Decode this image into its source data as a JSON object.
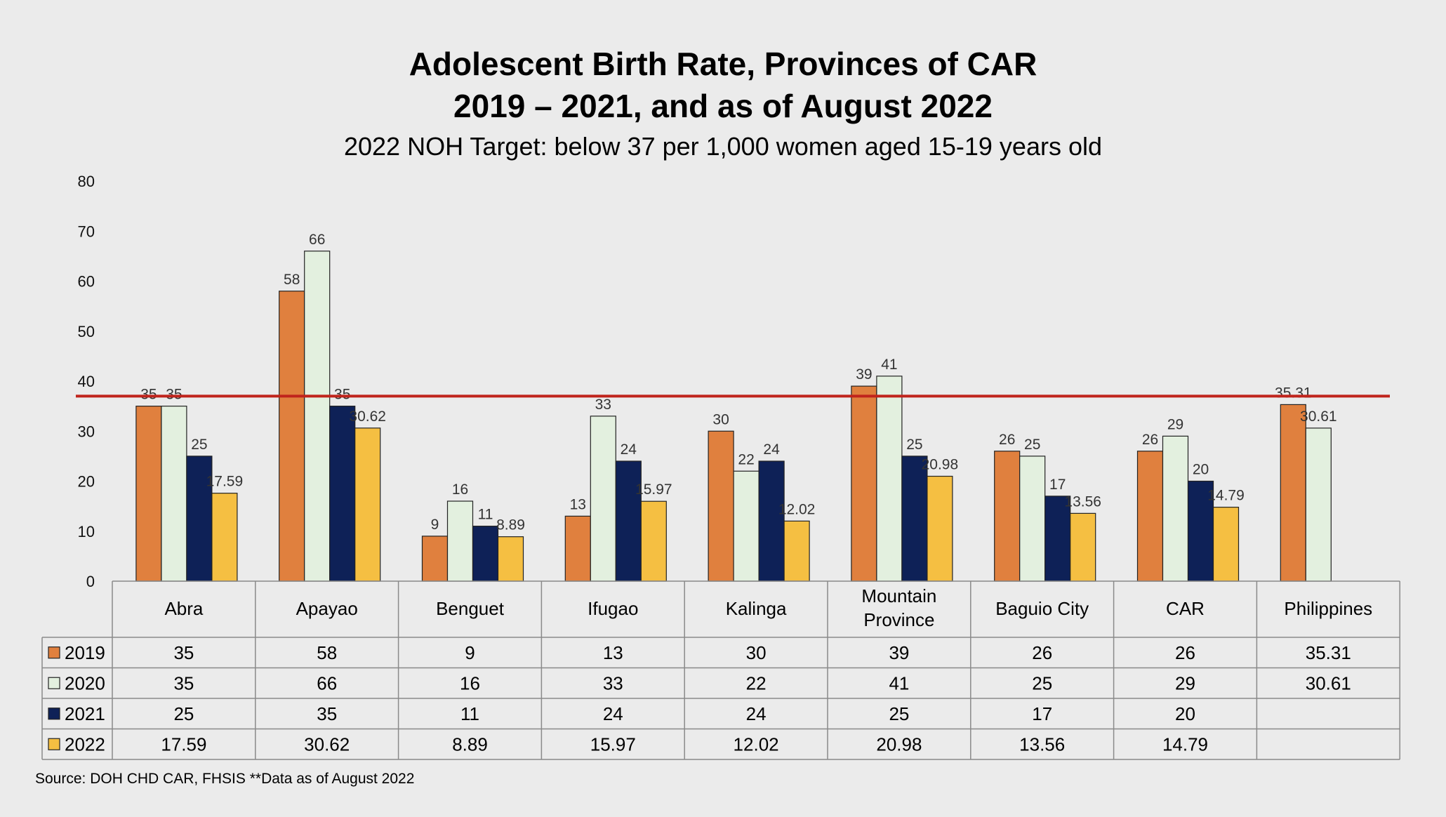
{
  "title_line1": "Adolescent Birth Rate, Provinces of CAR",
  "title_line2": "2019 – 2021, and as of August 2022",
  "subtitle": "2022 NOH Target: below 37 per 1,000 women aged 15-19 years old",
  "source": "Source: DOH CHD CAR, FHSIS **Data as of August 2022",
  "chart_data": {
    "type": "bar",
    "title": "Adolescent Birth Rate, Provinces of CAR 2019 – 2021, and as of August 2022",
    "subtitle": "2022 NOH Target: below 37 per 1,000 women aged 15-19 years old",
    "categories": [
      "Abra",
      "Apayao",
      "Benguet",
      "Ifugao",
      "Kalinga",
      "Mountain Province",
      "Baguio City",
      "CAR",
      "Philippines"
    ],
    "category_lines": [
      [
        "Abra"
      ],
      [
        "Apayao"
      ],
      [
        "Benguet"
      ],
      [
        "Ifugao"
      ],
      [
        "Kalinga"
      ],
      [
        "Mountain",
        "Province"
      ],
      [
        "Baguio City"
      ],
      [
        "CAR"
      ],
      [
        "Philippines"
      ]
    ],
    "series": [
      {
        "name": "2019",
        "color": "#e0803e",
        "values": [
          35,
          58,
          9,
          13,
          30,
          39,
          26,
          26,
          35.31
        ],
        "labels": [
          "35",
          "58",
          "9",
          "13",
          "30",
          "39",
          "26",
          "26",
          "35.31"
        ]
      },
      {
        "name": "2020",
        "color": "#e3f0df",
        "values": [
          35,
          66,
          16,
          33,
          22,
          41,
          25,
          29,
          30.61
        ],
        "labels": [
          "35",
          "66",
          "16",
          "33",
          "22",
          "41",
          "25",
          "29",
          "30.61"
        ]
      },
      {
        "name": "2021",
        "color": "#0e2157",
        "values": [
          25,
          35,
          11,
          24,
          24,
          25,
          17,
          20,
          null
        ],
        "labels": [
          "25",
          "35",
          "11",
          "24",
          "24",
          "25",
          "17",
          "20",
          ""
        ]
      },
      {
        "name": "2022",
        "color": "#f5bf42",
        "values": [
          17.59,
          30.62,
          8.89,
          15.97,
          12.02,
          20.98,
          13.56,
          14.79,
          null
        ],
        "labels": [
          "17.59",
          "30.62",
          "8.89",
          "15.97",
          "12.02",
          "20.98",
          "13.56",
          "14.79",
          ""
        ]
      }
    ],
    "target_line": {
      "value": 37,
      "color": "#c0241c"
    },
    "ylim": [
      0,
      80
    ],
    "yticks": [
      "0",
      "10",
      "20",
      "30",
      "40",
      "50",
      "60",
      "70",
      "80"
    ],
    "grid": false,
    "legend": "data-table"
  }
}
